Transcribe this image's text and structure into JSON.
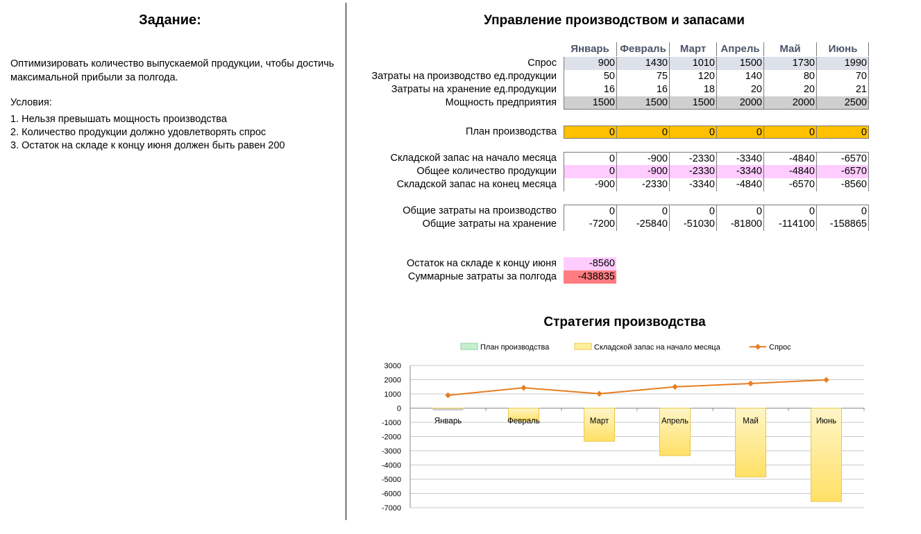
{
  "task": {
    "title": "Задание:",
    "description": "Оптимизировать количество выпускаемой продукции, чтобы достичь максимальной прибыли за полгода.",
    "conditions_title": "Условия:",
    "conditions": [
      "1. Нельзя превышать мощность производства",
      "2. Количество продукции должно удовлетворять спрос",
      "3. Остаток на складе к концу июня должен быть равен 200"
    ]
  },
  "main_title": "Управление производством и запасами",
  "months": [
    "Январь",
    "Февраль",
    "Март",
    "Апрель",
    "Май",
    "Июнь"
  ],
  "rows": [
    {
      "label": "Спрос",
      "values": [
        "900",
        "1430",
        "1010",
        "1500",
        "1730",
        "1990"
      ],
      "fill": "#dce1ea"
    },
    {
      "label": "Затраты на производство ед.продукции",
      "values": [
        "50",
        "75",
        "120",
        "140",
        "80",
        "70"
      ],
      "fill": ""
    },
    {
      "label": "Затраты на хранение ед.продукции",
      "values": [
        "16",
        "16",
        "18",
        "20",
        "20",
        "21"
      ],
      "fill": ""
    },
    {
      "label": "Мощность предприятия",
      "values": [
        "1500",
        "1500",
        "1500",
        "2000",
        "2000",
        "2500"
      ],
      "fill": "#cfcfcf"
    },
    {
      "label": "План производства",
      "values": [
        "0",
        "0",
        "0",
        "0",
        "0",
        "0"
      ],
      "fill": "#ffc000"
    },
    {
      "label": "Складской запас на начало месяца",
      "values": [
        "0",
        "-900",
        "-2330",
        "-3340",
        "-4840",
        "-6570"
      ],
      "fill": ""
    },
    {
      "label": "Общее количество продукции",
      "values": [
        "0",
        "-900",
        "-2330",
        "-3340",
        "-4840",
        "-6570"
      ],
      "fill": "#ffccff"
    },
    {
      "label": "Складской запас на конец месяца",
      "values": [
        "-900",
        "-2330",
        "-3340",
        "-4840",
        "-6570",
        "-8560"
      ],
      "fill": ""
    },
    {
      "label": "Общие затраты на производство",
      "values": [
        "0",
        "0",
        "0",
        "0",
        "0",
        "0"
      ],
      "fill": ""
    },
    {
      "label": "Общие затраты на хранение",
      "values": [
        "-7200",
        "-25840",
        "-51030",
        "-81800",
        "-114100",
        "-158865"
      ],
      "fill": ""
    }
  ],
  "summary": [
    {
      "label": "Остаток на складе к концу июня",
      "value": "-8560",
      "fill": "#ffccff"
    },
    {
      "label": "Суммарные затраты за полгода",
      "value": "-438835",
      "fill": "#ff7c80"
    }
  ],
  "chart_title": "Стратегия производства",
  "chart_data": {
    "type": "bar",
    "categories": [
      "Январь",
      "Февраль",
      "Март",
      "Апрель",
      "Май",
      "Июнь"
    ],
    "series": [
      {
        "name": "План производства",
        "kind": "bar",
        "values": [
          0,
          0,
          0,
          0,
          0,
          0
        ],
        "color": "#c6efce"
      },
      {
        "name": "Складской запас на начало месяца",
        "kind": "bar",
        "values": [
          0,
          -900,
          -2330,
          -3340,
          -4840,
          -6570
        ],
        "color": "#ffe680"
      },
      {
        "name": "Спрос",
        "kind": "line",
        "values": [
          900,
          1430,
          1010,
          1500,
          1730,
          1990
        ],
        "color": "#e67e22"
      }
    ],
    "ylim": [
      -7000,
      3000
    ],
    "yticks": [
      3000,
      2000,
      1000,
      0,
      -1000,
      -2000,
      -3000,
      -4000,
      -5000,
      -6000,
      -7000
    ],
    "grid": true,
    "legend": "top"
  }
}
